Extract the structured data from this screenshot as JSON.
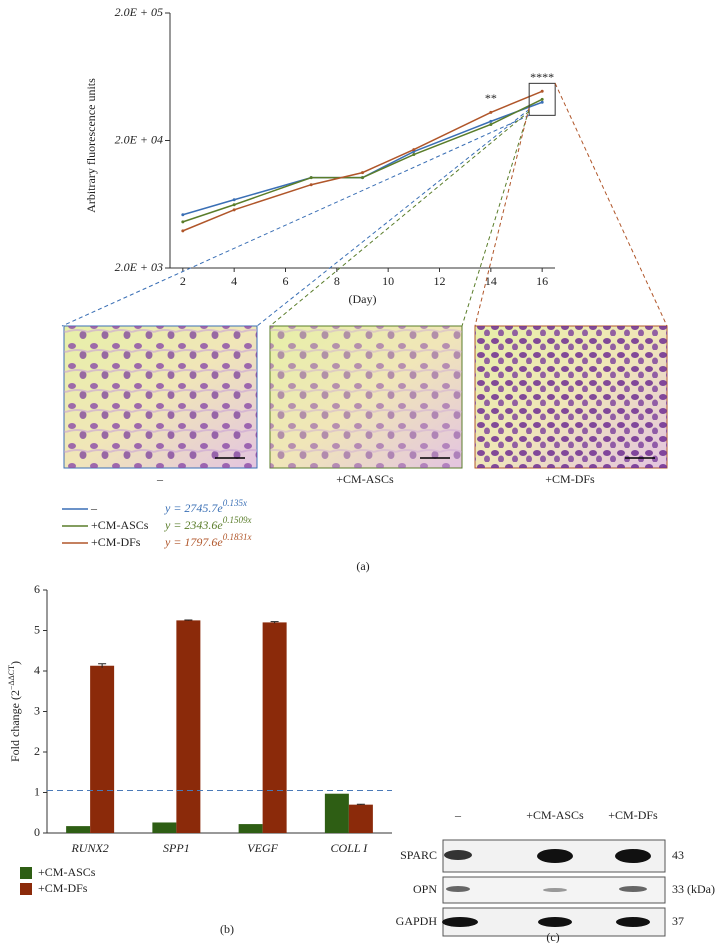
{
  "chart_data": [
    {
      "type": "line",
      "panel_label": "(a)",
      "y_label": "Arbitrary fluorescence units",
      "x_label": "(Day)",
      "log_y": true,
      "xlim": [
        1.5,
        16.5
      ],
      "xticks": [
        2,
        4,
        6,
        8,
        10,
        12,
        14,
        16
      ],
      "ylim": [
        2000,
        200000
      ],
      "yticks": [
        {
          "value": 2000,
          "label": "2.0E + 03"
        },
        {
          "value": 20000,
          "label": "2.0E + 04"
        },
        {
          "value": 200000,
          "label": "2.0E + 05"
        }
      ],
      "x": [
        2,
        4,
        7,
        9,
        11,
        14,
        16
      ],
      "series": [
        {
          "name": "–",
          "color": "#3a6fb5",
          "values": [
            5230,
            6860,
            10230,
            10230,
            16380,
            28250,
            39900
          ],
          "equation": "y = 2745.7e",
          "equation_exp": "0.135x"
        },
        {
          "name": "+CM-ASCs",
          "color": "#5a7d2a",
          "values": [
            4600,
            6270,
            10230,
            10230,
            15520,
            26730,
            42060
          ],
          "equation": "y = 2343.6e",
          "equation_exp": "0.1509x"
        },
        {
          "name": "+CM-DFs",
          "color": "#b0562a",
          "values": [
            3910,
            5720,
            9000,
            11200,
            16980,
            33200,
            48640
          ],
          "equation": "y = 1797.6e",
          "equation_exp": "0.1831x"
        }
      ],
      "annotations": [
        {
          "text": "**",
          "x": 14
        },
        {
          "text": "****",
          "x": 16
        }
      ]
    },
    {
      "type": "bar",
      "panel_label": "(b)",
      "y_label": "Fold change (2",
      "y_label_sup": "−ΔΔCT",
      "y_label_end": ")",
      "categories": [
        "RUNX2",
        "SPP1",
        "VEGF",
        "COLL I"
      ],
      "ylim": [
        0,
        6
      ],
      "yticks": [
        0,
        1,
        2,
        3,
        4,
        5,
        6
      ],
      "reference_line": 1.05,
      "series": [
        {
          "name": "+CM-ASCs",
          "color": "#2e5e14",
          "values": [
            0.17,
            0.26,
            0.22,
            0.97
          ]
        },
        {
          "name": "+CM-DFs",
          "color": "#8b2a0a",
          "values": [
            4.13,
            5.25,
            5.2,
            0.7
          ],
          "errors": [
            0.05,
            0.01,
            0.02,
            0.01
          ]
        }
      ]
    }
  ],
  "blot": {
    "panel_label": "(c)",
    "lanes": [
      "–",
      "+CM-ASCs",
      "+CM-DFs"
    ],
    "rows": [
      {
        "name": "SPARC",
        "size": "43"
      },
      {
        "name": "OPN",
        "size": "33 (kDa)"
      },
      {
        "name": "GAPDH",
        "size": "37"
      }
    ]
  }
}
